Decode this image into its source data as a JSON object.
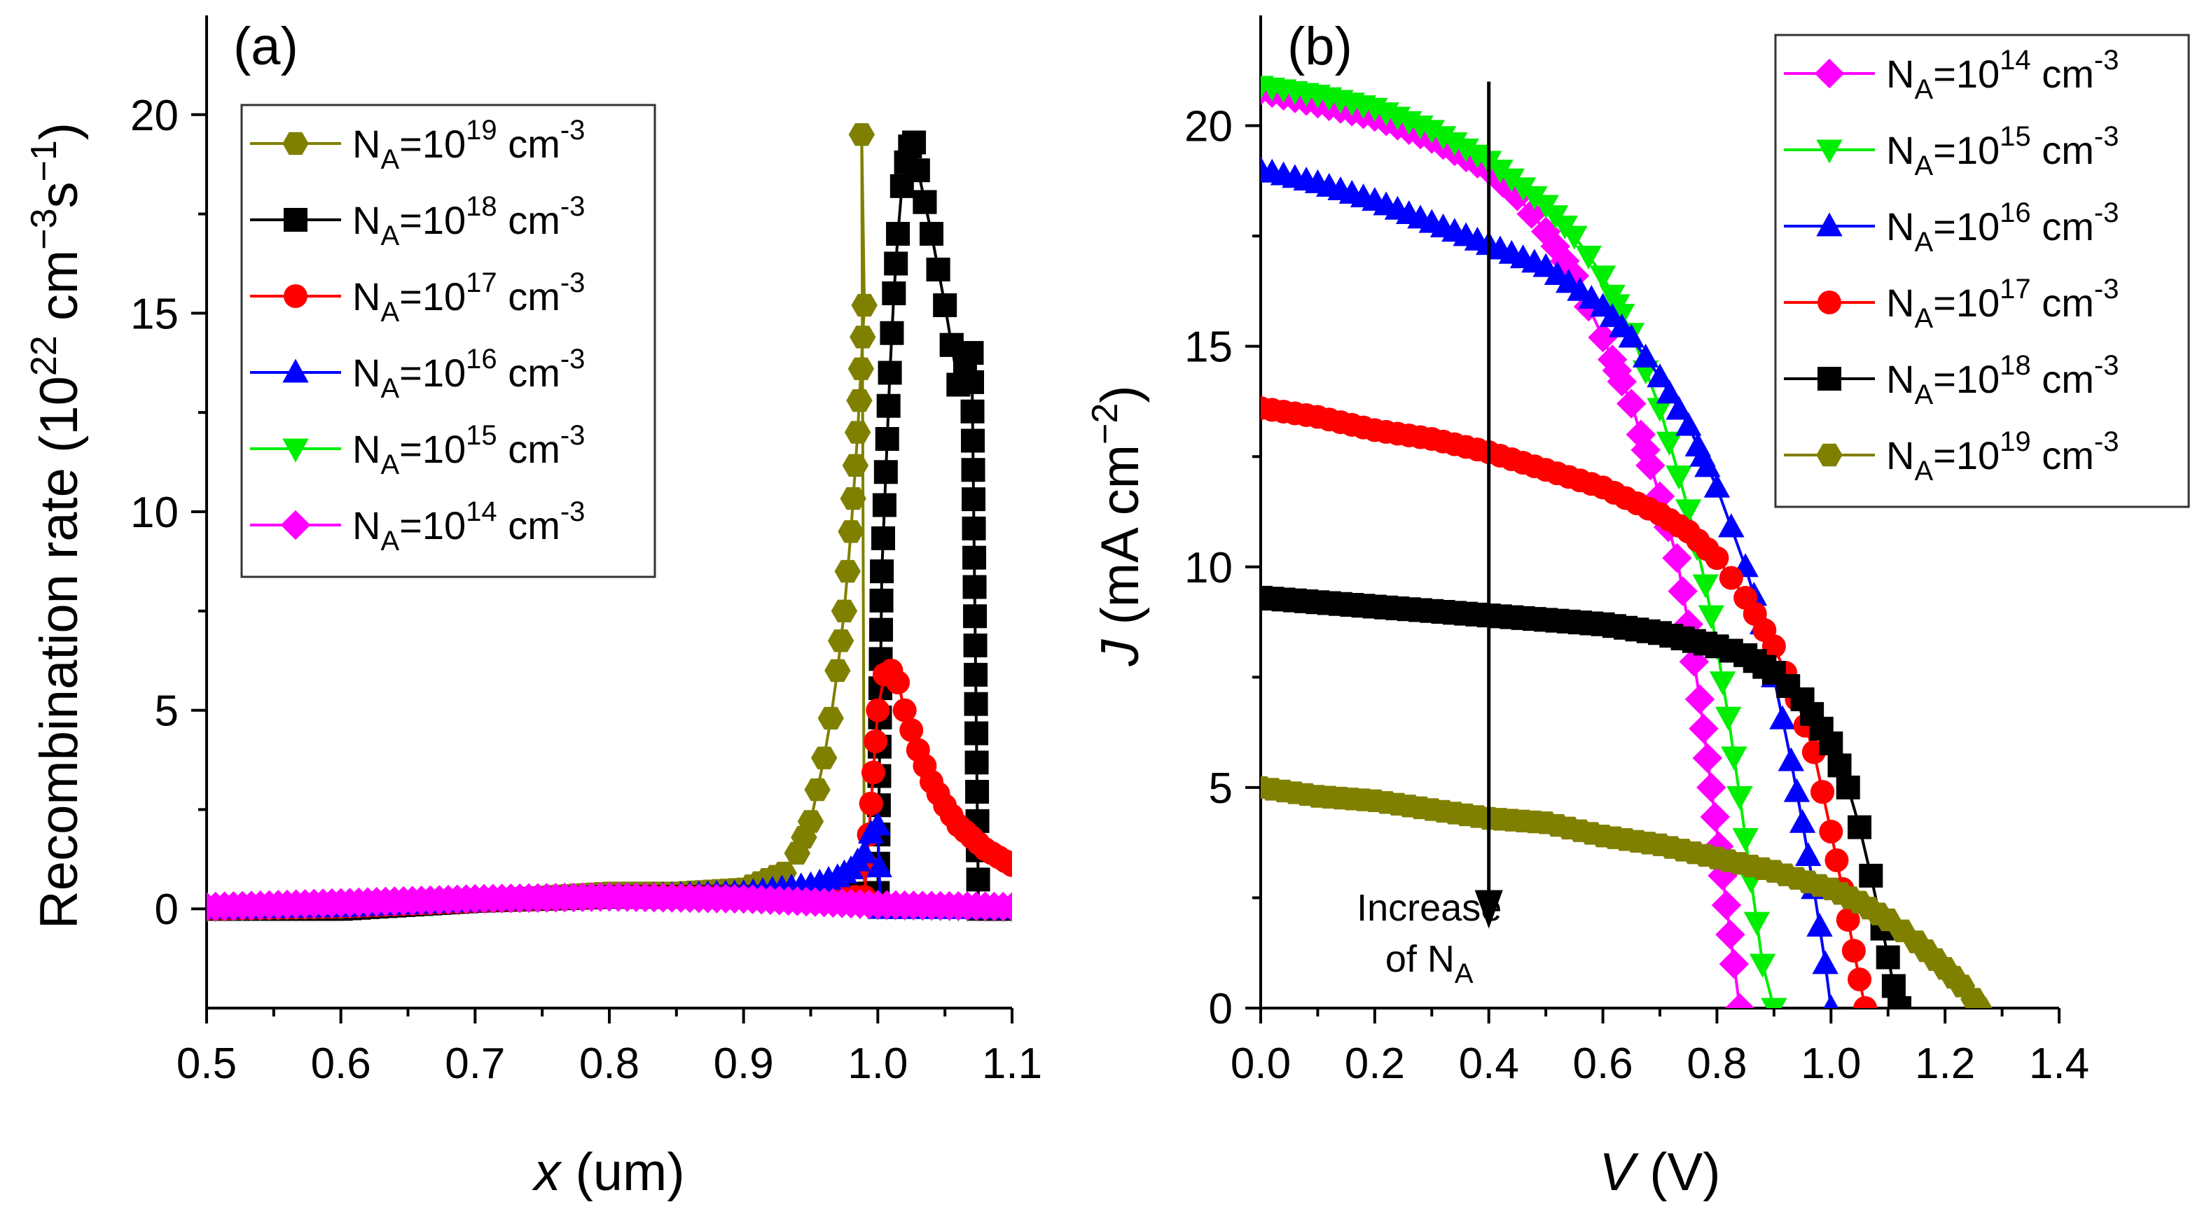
{
  "chart_data": [
    {
      "panel": "(a)",
      "type": "line",
      "xlabel_var": "x",
      "xlabel_unit": " (um)",
      "ylabel_main": "Recombination rate (10",
      "ylabel_exp1": "22",
      "ylabel_mid": " cm",
      "ylabel_exp2": "−3",
      "ylabel_s": "s",
      "ylabel_exp3": "−1",
      "ylabel_close": ")",
      "xlim": [
        0.5,
        1.1
      ],
      "ylim": [
        -2.5,
        22.5
      ],
      "xticks": [
        0.5,
        0.6,
        0.7,
        0.8,
        0.9,
        1.0,
        1.1
      ],
      "xtick_labels": [
        "0.5",
        "0.6",
        "0.7",
        "0.8",
        "0.9",
        "1.0",
        "1.1"
      ],
      "yticks": [
        0,
        5,
        10,
        15,
        20
      ],
      "ytick_labels": [
        "0",
        "5",
        "10",
        "15",
        "20"
      ],
      "legend_position": "top-left",
      "series": [
        {
          "name": "NA=1e19",
          "color": "#808000",
          "marker": "hexagon",
          "legend": {
            "exp": "19"
          },
          "x": [
            0.5,
            0.55,
            0.6,
            0.65,
            0.7,
            0.75,
            0.8,
            0.85,
            0.9,
            0.93,
            0.94,
            0.95,
            0.955,
            0.96,
            0.965,
            0.97,
            0.975,
            0.98,
            0.985,
            0.99
          ],
          "y": [
            0.0,
            0.0,
            0.05,
            0.1,
            0.2,
            0.3,
            0.4,
            0.4,
            0.5,
            0.9,
            1.4,
            2.2,
            3.0,
            3.8,
            4.8,
            6.0,
            7.5,
            9.5,
            12.0,
            15.2
          ],
          "peak": [
            0.988,
            19.5
          ],
          "drop_to": [
            0.99,
            0.0
          ]
        },
        {
          "name": "NA=1e18",
          "color": "#000000",
          "marker": "square",
          "legend": {
            "exp": "18"
          },
          "x": [
            0.5,
            0.6,
            0.7,
            0.8,
            0.9,
            0.95,
            1.0,
            1.003,
            1.006,
            1.009,
            1.012,
            1.015,
            1.018,
            1.021,
            1.024,
            1.027,
            1.03,
            1.04,
            1.05,
            1.06,
            1.07,
            1.075,
            1.1
          ],
          "y": [
            0.0,
            0.0,
            0.2,
            0.3,
            0.3,
            0.3,
            0.4,
            8.5,
            11.0,
            13.5,
            15.5,
            17.0,
            18.2,
            18.8,
            19.2,
            19.3,
            18.6,
            17.0,
            15.2,
            13.2,
            14.0,
            0.0,
            0.0
          ]
        },
        {
          "name": "NA=1e17",
          "color": "#ff0000",
          "marker": "circle",
          "legend": {
            "exp": "17"
          },
          "x": [
            0.5,
            0.6,
            0.7,
            0.8,
            0.9,
            0.95,
            0.99,
            1.0,
            1.005,
            1.01,
            1.015,
            1.02,
            1.03,
            1.04,
            1.05,
            1.06,
            1.07,
            1.08,
            1.09,
            1.1
          ],
          "y": [
            0.0,
            0.05,
            0.2,
            0.3,
            0.3,
            0.3,
            0.3,
            5.0,
            5.9,
            6.0,
            5.7,
            5.0,
            4.0,
            3.2,
            2.6,
            2.1,
            1.8,
            1.5,
            1.3,
            1.1
          ]
        },
        {
          "name": "NA=1e16",
          "color": "#0000ff",
          "marker": "triangle-up",
          "legend": {
            "exp": "16"
          },
          "x": [
            0.5,
            0.6,
            0.7,
            0.8,
            0.9,
            0.95,
            0.97,
            0.98,
            0.99,
            0.995,
            1.0,
            1.002,
            1.1
          ],
          "y": [
            0.0,
            0.05,
            0.2,
            0.3,
            0.4,
            0.6,
            0.8,
            1.0,
            1.4,
            1.9,
            2.1,
            0.0,
            0.0
          ]
        },
        {
          "name": "NA=1e15",
          "color": "#00ee00",
          "marker": "triangle-down",
          "legend": {
            "exp": "15"
          },
          "x": [
            0.5,
            0.6,
            0.7,
            0.8,
            0.9,
            1.0,
            1.1
          ],
          "y": [
            0.0,
            0.1,
            0.25,
            0.3,
            0.25,
            0.05,
            0.0
          ]
        },
        {
          "name": "NA=1e14",
          "color": "#ff00ff",
          "marker": "diamond",
          "legend": {
            "exp": "14"
          },
          "x": [
            0.5,
            0.6,
            0.7,
            0.8,
            0.9,
            1.0,
            1.1
          ],
          "y": [
            0.05,
            0.15,
            0.25,
            0.3,
            0.25,
            0.1,
            0.05
          ]
        }
      ],
      "legend_order": [
        "NA=1e19",
        "NA=1e18",
        "NA=1e17",
        "NA=1e16",
        "NA=1e15",
        "NA=1e14"
      ]
    },
    {
      "panel": "(b)",
      "type": "line",
      "xlabel_var": "V",
      "xlabel_unit": " (V)",
      "ylabel_var": "J",
      "ylabel_unit": " (mA cm",
      "ylabel_exp": "−2",
      "ylabel_close": ")",
      "xlim": [
        0.0,
        1.4
      ],
      "ylim": [
        0,
        22.5
      ],
      "xticks": [
        0.0,
        0.2,
        0.4,
        0.6,
        0.8,
        1.0,
        1.2,
        1.4
      ],
      "xtick_labels": [
        "0.0",
        "0.2",
        "0.4",
        "0.6",
        "0.8",
        "1.0",
        "1.2",
        "1.4"
      ],
      "yticks": [
        0,
        5,
        10,
        15,
        20
      ],
      "ytick_labels": [
        "0",
        "5",
        "10",
        "15",
        "20"
      ],
      "legend_position": "top-right",
      "annotation": {
        "line1": "Increase",
        "line2": "of N",
        "sub": "A",
        "arrow_x": 0.4,
        "arrow_from": 21.0,
        "arrow_to": 1.8
      },
      "series": [
        {
          "name": "NA=1e14",
          "color": "#ff00ff",
          "marker": "diamond",
          "legend": {
            "exp": "14"
          },
          "x": [
            0.0,
            0.1,
            0.2,
            0.3,
            0.4,
            0.45,
            0.5,
            0.55,
            0.6,
            0.65,
            0.7,
            0.73,
            0.75,
            0.77,
            0.79,
            0.81,
            0.83,
            0.84
          ],
          "y": [
            20.8,
            20.5,
            20.2,
            19.7,
            19.0,
            18.4,
            17.6,
            16.6,
            15.2,
            13.7,
            11.6,
            10.2,
            8.7,
            7.0,
            5.0,
            3.0,
            1.0,
            0.0
          ]
        },
        {
          "name": "NA=1e15",
          "color": "#00ee00",
          "marker": "triangle-down",
          "legend": {
            "exp": "15"
          },
          "x": [
            0.0,
            0.1,
            0.2,
            0.3,
            0.4,
            0.5,
            0.55,
            0.6,
            0.65,
            0.7,
            0.75,
            0.78,
            0.8,
            0.82,
            0.84,
            0.86,
            0.88,
            0.9
          ],
          "y": [
            20.9,
            20.7,
            20.4,
            19.9,
            19.2,
            18.2,
            17.5,
            16.6,
            15.3,
            13.6,
            11.3,
            9.6,
            8.2,
            6.6,
            4.8,
            2.9,
            1.0,
            0.0
          ]
        },
        {
          "name": "NA=1e16",
          "color": "#0000ff",
          "marker": "triangle-up",
          "legend": {
            "exp": "16"
          },
          "x": [
            0.0,
            0.1,
            0.2,
            0.3,
            0.4,
            0.5,
            0.6,
            0.65,
            0.7,
            0.75,
            0.8,
            0.85,
            0.88,
            0.9,
            0.93,
            0.95,
            0.97,
            0.99,
            1.0
          ],
          "y": [
            19.0,
            18.7,
            18.3,
            17.8,
            17.3,
            16.8,
            15.9,
            15.2,
            14.3,
            13.2,
            11.8,
            10.0,
            8.7,
            7.5,
            5.6,
            4.2,
            2.7,
            1.0,
            0.0
          ]
        },
        {
          "name": "NA=1e17",
          "color": "#ff0000",
          "marker": "circle",
          "legend": {
            "exp": "17"
          },
          "x": [
            0.0,
            0.1,
            0.2,
            0.3,
            0.4,
            0.5,
            0.6,
            0.7,
            0.75,
            0.8,
            0.85,
            0.9,
            0.94,
            0.97,
            1.0,
            1.02,
            1.04,
            1.06
          ],
          "y": [
            13.6,
            13.4,
            13.1,
            12.9,
            12.6,
            12.2,
            11.8,
            11.2,
            10.8,
            10.2,
            9.3,
            8.2,
            7.0,
            5.8,
            4.0,
            2.7,
            1.3,
            0.0
          ]
        },
        {
          "name": "NA=1e18",
          "color": "#000000",
          "marker": "square",
          "legend": {
            "exp": "18"
          },
          "x": [
            0.0,
            0.1,
            0.2,
            0.3,
            0.4,
            0.5,
            0.6,
            0.7,
            0.8,
            0.85,
            0.9,
            0.95,
            1.0,
            1.03,
            1.05,
            1.07,
            1.09,
            1.11,
            1.12
          ],
          "y": [
            9.3,
            9.2,
            9.1,
            9.0,
            8.9,
            8.8,
            8.7,
            8.5,
            8.2,
            8.0,
            7.6,
            7.0,
            6.0,
            5.0,
            4.1,
            3.0,
            1.8,
            0.5,
            0.0
          ]
        },
        {
          "name": "NA=1e19",
          "color": "#808000",
          "marker": "hexagon",
          "legend": {
            "exp": "19"
          },
          "x": [
            0.0,
            0.1,
            0.2,
            0.3,
            0.4,
            0.5,
            0.6,
            0.7,
            0.8,
            0.9,
            1.0,
            1.05,
            1.1,
            1.15,
            1.2,
            1.23,
            1.25,
            1.26
          ],
          "y": [
            5.0,
            4.8,
            4.7,
            4.5,
            4.3,
            4.2,
            3.9,
            3.7,
            3.4,
            3.1,
            2.7,
            2.4,
            2.0,
            1.5,
            0.9,
            0.5,
            0.2,
            0.0
          ]
        }
      ],
      "legend_order": [
        "NA=1e14",
        "NA=1e15",
        "NA=1e16",
        "NA=1e17",
        "NA=1e18",
        "NA=1e19"
      ]
    }
  ],
  "legend_text": {
    "prefix": "N",
    "sub": "A",
    "eq": "=10",
    "unit": " cm",
    "unit_exp": "-3"
  }
}
